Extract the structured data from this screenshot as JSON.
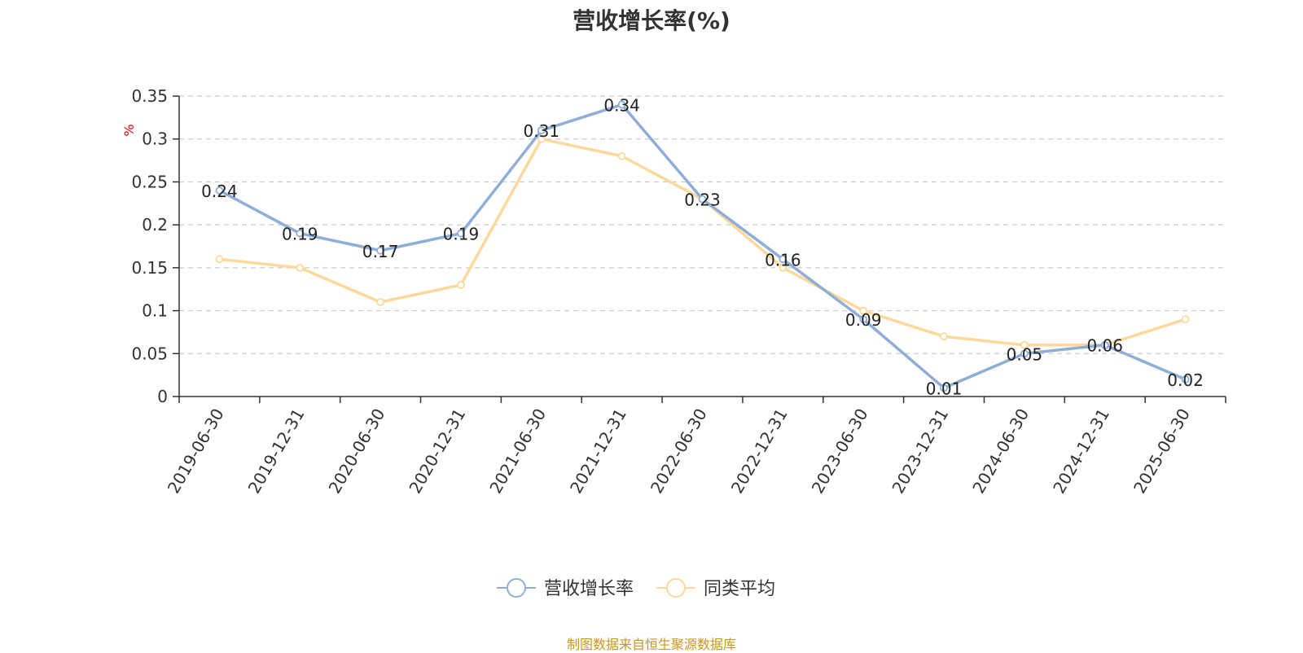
{
  "title": "营收增长率(%)",
  "source_note": "制图数据来自恒生聚源数据库",
  "colors": {
    "series1": "#8eaed8",
    "series2": "#fcd99a",
    "axis": "#333333",
    "grid": "#cccccc",
    "unit": "#e60000",
    "source": "#c8961e"
  },
  "chart_data": {
    "type": "line",
    "title": "营收增长率(%)",
    "ylabel": "%",
    "xlabel": "",
    "ylim": [
      0,
      0.35
    ],
    "yticks": [
      0,
      0.05,
      0.1,
      0.15,
      0.2,
      0.25,
      0.3,
      0.35
    ],
    "ytick_labels": [
      "0",
      "0.05",
      "0.1",
      "0.15",
      "0.2",
      "0.25",
      "0.3",
      "0.35"
    ],
    "grid": true,
    "legend_position": "bottom-center",
    "categories": [
      "2019-06-30",
      "2019-12-31",
      "2020-06-30",
      "2020-12-31",
      "2021-06-30",
      "2021-12-31",
      "2022-06-30",
      "2022-12-31",
      "2023-06-30",
      "2023-12-31",
      "2024-06-30",
      "2024-12-31",
      "2025-06-30"
    ],
    "series": [
      {
        "name": "营收增长率",
        "values": [
          0.24,
          0.19,
          0.17,
          0.19,
          0.31,
          0.34,
          0.23,
          0.16,
          0.09,
          0.01,
          0.05,
          0.06,
          0.02
        ],
        "labels": [
          "0.24",
          "0.19",
          "0.17",
          "0.19",
          "0.31",
          "0.34",
          "0.23",
          "0.16",
          "0.09",
          "0.01",
          "0.05",
          "0.06",
          "0.02"
        ]
      },
      {
        "name": "同类平均",
        "values": [
          0.16,
          0.15,
          0.11,
          0.13,
          0.3,
          0.28,
          0.23,
          0.15,
          0.1,
          0.07,
          0.06,
          0.06,
          0.09
        ]
      }
    ]
  }
}
